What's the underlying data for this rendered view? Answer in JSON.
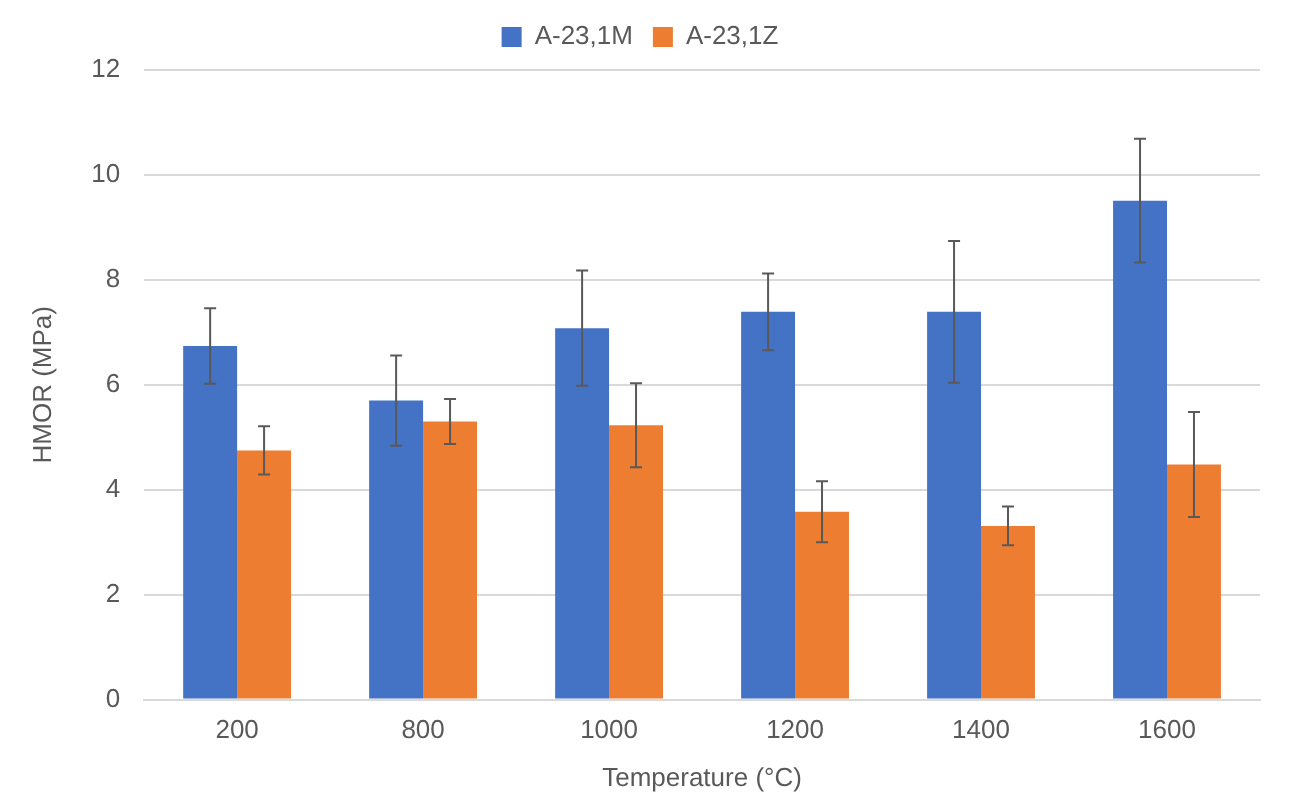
{
  "chart_data": {
    "type": "bar",
    "xlabel": "Temperature (°C)",
    "ylabel": "HMOR (MPa)",
    "categories": [
      "200",
      "800",
      "1000",
      "1200",
      "1400",
      "1600"
    ],
    "series": [
      {
        "name": "A-23,1M",
        "color": "#4472c4",
        "values": [
          6.74,
          5.7,
          7.08,
          7.39,
          7.39,
          9.51
        ],
        "errors": [
          0.72,
          0.86,
          1.1,
          0.73,
          1.35,
          1.18
        ]
      },
      {
        "name": "A-23,1Z",
        "color": "#ed7d31",
        "values": [
          4.75,
          5.3,
          5.23,
          3.58,
          3.31,
          4.48
        ],
        "errors": [
          0.46,
          0.43,
          0.8,
          0.58,
          0.37,
          1.0
        ]
      }
    ],
    "ylim": [
      0,
      12
    ],
    "yticks": [
      0,
      2,
      4,
      6,
      8,
      10,
      12
    ],
    "grid": "y",
    "legend": "top"
  }
}
